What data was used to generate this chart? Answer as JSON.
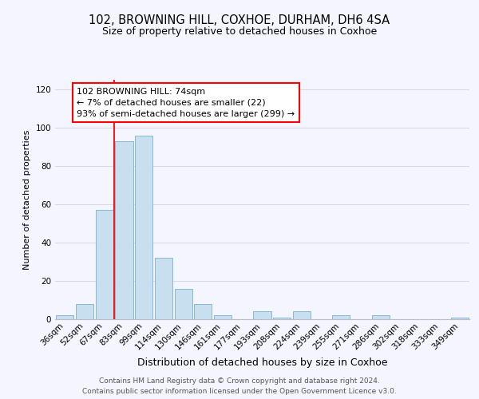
{
  "title": "102, BROWNING HILL, COXHOE, DURHAM, DH6 4SA",
  "subtitle": "Size of property relative to detached houses in Coxhoe",
  "xlabel": "Distribution of detached houses by size in Coxhoe",
  "ylabel": "Number of detached properties",
  "bar_color": "#c8dff0",
  "bar_edge_color": "#7ab0d0",
  "bin_labels": [
    "36sqm",
    "52sqm",
    "67sqm",
    "83sqm",
    "99sqm",
    "114sqm",
    "130sqm",
    "146sqm",
    "161sqm",
    "177sqm",
    "193sqm",
    "208sqm",
    "224sqm",
    "239sqm",
    "255sqm",
    "271sqm",
    "286sqm",
    "302sqm",
    "318sqm",
    "333sqm",
    "349sqm"
  ],
  "bar_heights": [
    2,
    8,
    57,
    93,
    96,
    32,
    16,
    8,
    2,
    0,
    4,
    1,
    4,
    0,
    2,
    0,
    2,
    0,
    0,
    0,
    1
  ],
  "ylim": [
    0,
    125
  ],
  "yticks": [
    0,
    20,
    40,
    60,
    80,
    100,
    120
  ],
  "annotation_box_text": "102 BROWNING HILL: 74sqm\n← 7% of detached houses are smaller (22)\n93% of semi-detached houses are larger (299) →",
  "annotation_box_color": "white",
  "annotation_box_edge_color": "red",
  "red_line_bin_index": 2,
  "footer_text": "Contains HM Land Registry data © Crown copyright and database right 2024.\nContains public sector information licensed under the Open Government Licence v3.0.",
  "background_color": "#f5f5ff",
  "grid_color": "#d8d8e8",
  "title_fontsize": 10.5,
  "subtitle_fontsize": 9,
  "ylabel_fontsize": 8,
  "xlabel_fontsize": 9,
  "tick_fontsize": 7.5,
  "footer_fontsize": 6.5
}
